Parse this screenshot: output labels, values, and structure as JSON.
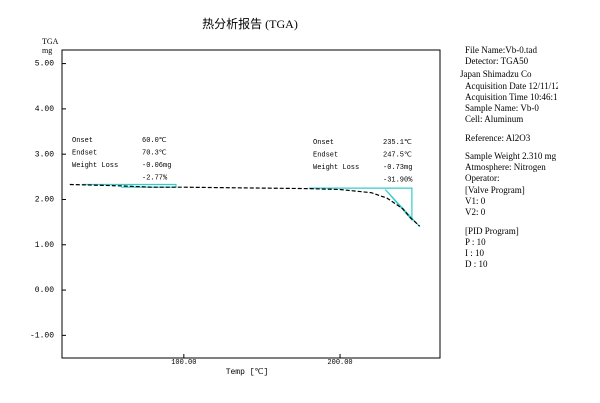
{
  "chart_data": {
    "type": "line",
    "title": "热分析报告 (TGA)",
    "y_label_top": "TGA",
    "y_label_unit": "mg",
    "x_label": "Temp [℃]",
    "x": [
      27,
      40,
      60,
      80,
      100,
      150,
      180,
      200,
      220,
      230,
      240,
      245,
      251
    ],
    "values": [
      2.33,
      2.32,
      2.3,
      2.27,
      2.27,
      2.25,
      2.24,
      2.22,
      2.15,
      2.03,
      1.8,
      1.6,
      1.41
    ],
    "color": "#000000",
    "analysis_color": "#33cccc",
    "analysis_lines": [
      {
        "x": [
          35,
          95,
          95,
          60
        ],
        "values": [
          2.33,
          2.33,
          2.27,
          2.27
        ]
      },
      {
        "x": [
          180,
          246,
          246,
          229,
          251
        ],
        "values": [
          2.25,
          2.25,
          1.55,
          2.22,
          1.4
        ]
      }
    ],
    "xlim": [
      22,
      264
    ],
    "ylim": [
      -1.5,
      5.3
    ],
    "xticks": [
      {
        "value": 100,
        "label": "100.00"
      },
      {
        "value": 200,
        "label": "200.00"
      }
    ],
    "yticks": [
      {
        "value": 5,
        "label": "5.00"
      },
      {
        "value": 4,
        "label": "4.00"
      },
      {
        "value": 3,
        "label": "3.00"
      },
      {
        "value": 2,
        "label": "2.00"
      },
      {
        "value": 1,
        "label": "1.00"
      },
      {
        "value": 0,
        "label": "0.00"
      },
      {
        "value": -1,
        "label": "-1.00"
      }
    ],
    "annotations": [
      {
        "rows": [
          [
            "Onset",
            "60.0℃"
          ],
          [
            "Endset",
            "70.3℃"
          ],
          [
            "Weight Loss",
            "-0.06mg"
          ],
          [
            "",
            "-2.77%"
          ]
        ]
      },
      {
        "rows": [
          [
            "Onset",
            "235.1℃"
          ],
          [
            "Endset",
            "247.5℃"
          ],
          [
            "Weight Loss",
            "-0.73mg"
          ],
          [
            "",
            "-31.90%"
          ]
        ]
      }
    ]
  },
  "info_panel": [
    "File Name:Vb-0.tad",
    "Detector: TGA50",
    "Japan Shimadzu Co",
    "Acquisition Date 12/11/12",
    "Acquisition Time 10:46:11",
    "Sample Name: Vb-0",
    "Cell: Aluminum",
    "Reference: Al2O3",
    "Sample Weight 2.310 mg",
    "Atmosphere: Nitrogen",
    "Operator:",
    "[Valve Program]",
    "V1: 0",
    "V2: 0",
    "[PID Program]",
    "P : 10",
    "I : 10",
    "D : 10"
  ]
}
